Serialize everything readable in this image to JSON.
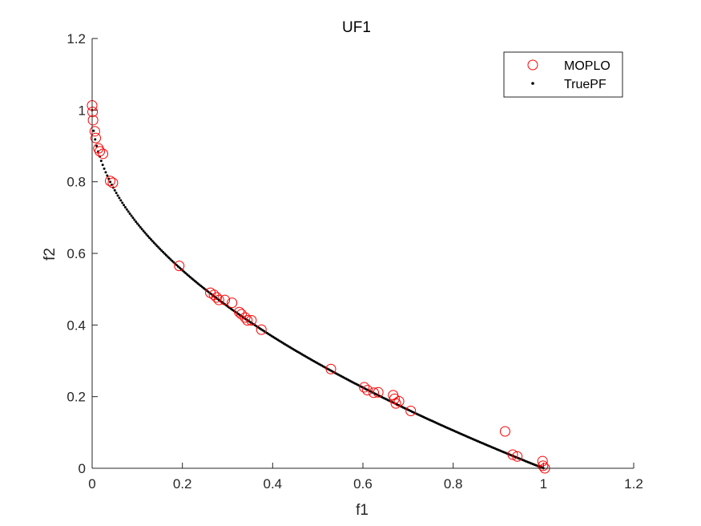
{
  "chart_data": {
    "type": "scatter",
    "title": "UF1",
    "xlabel": "f1",
    "ylabel": "f2",
    "xlim": [
      0,
      1.2
    ],
    "ylim": [
      0,
      1.2
    ],
    "xticks": [
      "0",
      "0.2",
      "0.4",
      "0.6",
      "0.8",
      "1",
      "1.2"
    ],
    "yticks": [
      "0",
      "0.2",
      "0.4",
      "0.6",
      "0.8",
      "1",
      "1.2"
    ],
    "grid": false,
    "legend_position": "top-right",
    "series": [
      {
        "name": "MOPLO",
        "marker": "open-circle",
        "color": "#ff0000",
        "points": [
          [
            0.0,
            1.013
          ],
          [
            0.001,
            0.995
          ],
          [
            0.002,
            0.972
          ],
          [
            0.006,
            0.941
          ],
          [
            0.008,
            0.922
          ],
          [
            0.014,
            0.893
          ],
          [
            0.017,
            0.885
          ],
          [
            0.024,
            0.878
          ],
          [
            0.04,
            0.802
          ],
          [
            0.046,
            0.797
          ],
          [
            0.193,
            0.565
          ],
          [
            0.262,
            0.49
          ],
          [
            0.27,
            0.484
          ],
          [
            0.276,
            0.477
          ],
          [
            0.281,
            0.47
          ],
          [
            0.294,
            0.47
          ],
          [
            0.31,
            0.462
          ],
          [
            0.326,
            0.436
          ],
          [
            0.331,
            0.43
          ],
          [
            0.339,
            0.421
          ],
          [
            0.344,
            0.413
          ],
          [
            0.353,
            0.413
          ],
          [
            0.375,
            0.387
          ],
          [
            0.529,
            0.277
          ],
          [
            0.603,
            0.226
          ],
          [
            0.61,
            0.218
          ],
          [
            0.624,
            0.211
          ],
          [
            0.634,
            0.212
          ],
          [
            0.667,
            0.204
          ],
          [
            0.67,
            0.194
          ],
          [
            0.673,
            0.181
          ],
          [
            0.68,
            0.187
          ],
          [
            0.706,
            0.16
          ],
          [
            0.915,
            0.103
          ],
          [
            0.932,
            0.038
          ],
          [
            0.942,
            0.033
          ],
          [
            0.998,
            0.02
          ],
          [
            0.999,
            0.007
          ],
          [
            1.003,
            0.0
          ]
        ]
      },
      {
        "name": "TruePF",
        "marker": "dot",
        "color": "#000000",
        "function": "f2 = 1 - sqrt(f1)",
        "x_range": [
          0,
          1
        ],
        "point_count": 300
      }
    ]
  }
}
